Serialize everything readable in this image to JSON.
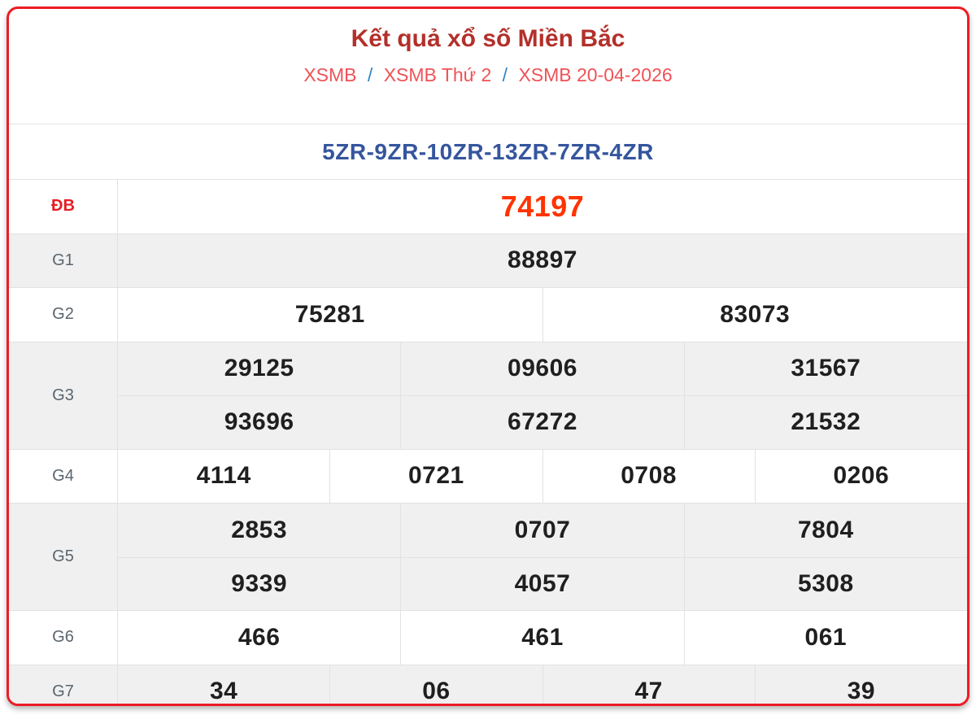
{
  "header": {
    "title": "Kết quả xổ số Miền Bắc",
    "breadcrumb": [
      {
        "label": "XSMB"
      },
      {
        "label": "XSMB Thứ 2"
      },
      {
        "label": "XSMB 20-04-2026"
      }
    ],
    "separator": "/"
  },
  "code_line": "5ZR-9ZR-10ZR-13ZR-7ZR-4ZR",
  "results": {
    "rows": [
      {
        "id": "db",
        "label": "ĐB",
        "highlight": true,
        "shaded": false,
        "values": [
          [
            "74197"
          ]
        ]
      },
      {
        "id": "g1",
        "label": "G1",
        "highlight": false,
        "shaded": true,
        "values": [
          [
            "88897"
          ]
        ]
      },
      {
        "id": "g2",
        "label": "G2",
        "highlight": false,
        "shaded": false,
        "values": [
          [
            "75281",
            "83073"
          ]
        ]
      },
      {
        "id": "g3",
        "label": "G3",
        "highlight": false,
        "shaded": true,
        "values": [
          [
            "29125",
            "09606",
            "31567"
          ],
          [
            "93696",
            "67272",
            "21532"
          ]
        ]
      },
      {
        "id": "g4",
        "label": "G4",
        "highlight": false,
        "shaded": false,
        "values": [
          [
            "4114",
            "0721",
            "0708",
            "0206"
          ]
        ]
      },
      {
        "id": "g5",
        "label": "G5",
        "highlight": false,
        "shaded": true,
        "values": [
          [
            "2853",
            "0707",
            "7804"
          ],
          [
            "9339",
            "4057",
            "5308"
          ]
        ]
      },
      {
        "id": "g6",
        "label": "G6",
        "highlight": false,
        "shaded": false,
        "values": [
          [
            "466",
            "461",
            "061"
          ]
        ]
      },
      {
        "id": "g7",
        "label": "G7",
        "highlight": false,
        "shaded": true,
        "values": [
          [
            "34",
            "06",
            "47",
            "39"
          ]
        ]
      }
    ]
  },
  "colors": {
    "card_border": "#ed1c24",
    "title_red": "#b3302b",
    "breadcrumb_red": "#ef5257",
    "separator_blue": "#2e86c8",
    "code_blue": "#35559d",
    "special_prize_red": "#ff3300",
    "special_label_red": "#e31e24",
    "shaded_row_gray": "#f0f0f0",
    "grid_line_gray": "#e2e2e2",
    "value_text": "#1f1f1f",
    "label_text": "#5a646e"
  }
}
